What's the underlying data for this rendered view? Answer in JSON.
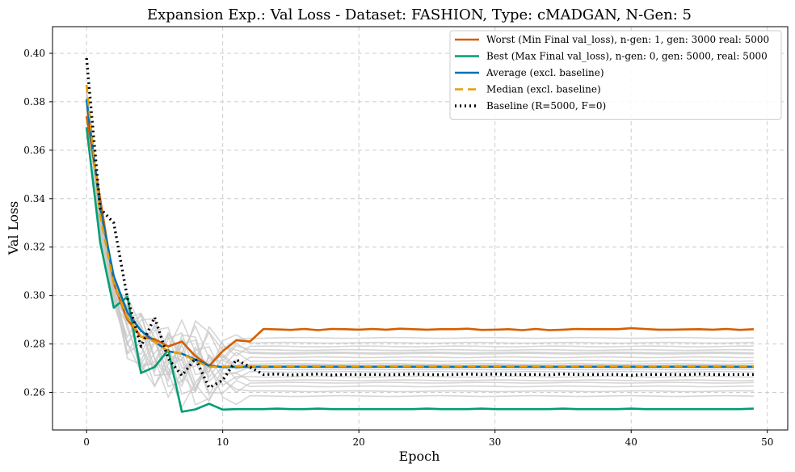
{
  "chart_data": {
    "type": "line",
    "title": "Expansion Exp.: Val Loss - Dataset: FASHION, Type: cMADGAN, N-Gen: 5",
    "xlabel": "Epoch",
    "ylabel": "Val Loss",
    "xlim": [
      -2.5,
      51.5
    ],
    "ylim": [
      0.2445,
      0.411
    ],
    "xticks": [
      0,
      10,
      20,
      30,
      40,
      50
    ],
    "yticks": [
      0.26,
      0.28,
      0.3,
      0.32,
      0.34,
      0.36,
      0.38,
      0.4
    ],
    "ytick_labels": [
      "0.26",
      "0.28",
      "0.30",
      "0.32",
      "0.34",
      "0.36",
      "0.38",
      "0.40"
    ],
    "grid": true,
    "legend_position": "top-right",
    "background_series": {
      "color": "#c8c8c8",
      "finals": [
        0.2825,
        0.2805,
        0.279,
        0.2775,
        0.276,
        0.2745,
        0.273,
        0.2718,
        0.2705,
        0.2695,
        0.2685,
        0.2665,
        0.265,
        0.264,
        0.2625,
        0.2605,
        0.2585,
        0.2765,
        0.2712
      ]
    },
    "series": [
      {
        "name": "Worst (Min Final val_loss), n-gen: 1, gen: 3000 real: 5000",
        "color": "#d55e00",
        "dash": "",
        "width": 2.6,
        "x": [
          0,
          1,
          2,
          3,
          4,
          5,
          6,
          7,
          8,
          9,
          10,
          11,
          12,
          13,
          14,
          15,
          16,
          17,
          18,
          19,
          20,
          21,
          22,
          23,
          24,
          25,
          26,
          27,
          28,
          29,
          30,
          31,
          32,
          33,
          34,
          35,
          36,
          37,
          38,
          39,
          40,
          41,
          42,
          43,
          44,
          45,
          46,
          47,
          48,
          49
        ],
        "y": [
          0.374,
          0.34,
          0.305,
          0.29,
          0.283,
          0.282,
          0.279,
          0.281,
          0.275,
          0.271,
          0.277,
          0.2815,
          0.281,
          0.2862,
          0.286,
          0.2858,
          0.2862,
          0.2857,
          0.2862,
          0.2861,
          0.2859,
          0.2862,
          0.2859,
          0.2863,
          0.2861,
          0.2859,
          0.2861,
          0.2861,
          0.2863,
          0.2858,
          0.2859,
          0.2861,
          0.2857,
          0.2862,
          0.2857,
          0.2859,
          0.2862,
          0.2861,
          0.2861,
          0.2861,
          0.2865,
          0.2862,
          0.2859,
          0.2859,
          0.286,
          0.2861,
          0.2859,
          0.2862,
          0.2858,
          0.2861
        ]
      },
      {
        "name": "Best (Max Final val_loss), n-gen: 0, gen: 5000, real: 5000",
        "color": "#009e73",
        "dash": "",
        "width": 2.6,
        "x": [
          0,
          1,
          2,
          3,
          4,
          5,
          6,
          7,
          8,
          9,
          10,
          11,
          12,
          13,
          14,
          15,
          16,
          17,
          18,
          19,
          20,
          21,
          22,
          23,
          24,
          25,
          26,
          27,
          28,
          29,
          30,
          31,
          32,
          33,
          34,
          35,
          36,
          37,
          38,
          39,
          40,
          41,
          42,
          43,
          44,
          45,
          46,
          47,
          48,
          49
        ],
        "y": [
          0.3695,
          0.322,
          0.295,
          0.2995,
          0.268,
          0.2705,
          0.2775,
          0.252,
          0.253,
          0.2553,
          0.2529,
          0.2531,
          0.2531,
          0.2531,
          0.2533,
          0.2531,
          0.2531,
          0.2533,
          0.2531,
          0.2531,
          0.2531,
          0.2531,
          0.2531,
          0.2531,
          0.2531,
          0.2533,
          0.2531,
          0.2531,
          0.2531,
          0.2533,
          0.2531,
          0.2531,
          0.2531,
          0.2531,
          0.2531,
          0.2533,
          0.2531,
          0.2531,
          0.2531,
          0.2531,
          0.2533,
          0.2531,
          0.2531,
          0.2531,
          0.2531,
          0.2531,
          0.2531,
          0.2531,
          0.2531,
          0.2533
        ]
      },
      {
        "name": "Average (excl. baseline)",
        "color": "#0072b2",
        "dash": "",
        "width": 2.6,
        "x": [
          0,
          1,
          2,
          3,
          4,
          5,
          6,
          7,
          8,
          9,
          10,
          11,
          12,
          13,
          14,
          15,
          16,
          17,
          18,
          19,
          20,
          21,
          22,
          23,
          24,
          25,
          26,
          27,
          28,
          29,
          30,
          31,
          32,
          33,
          34,
          35,
          36,
          37,
          38,
          39,
          40,
          41,
          42,
          43,
          44,
          45,
          46,
          47,
          48,
          49
        ],
        "y": [
          0.381,
          0.336,
          0.308,
          0.293,
          0.2855,
          0.281,
          0.277,
          0.276,
          0.2735,
          0.271,
          0.2705,
          0.2705,
          0.2706,
          0.2706,
          0.2706,
          0.2706,
          0.2706,
          0.2706,
          0.2706,
          0.2706,
          0.2706,
          0.2706,
          0.2706,
          0.2706,
          0.2706,
          0.2706,
          0.2706,
          0.2706,
          0.2706,
          0.2706,
          0.2706,
          0.2706,
          0.2706,
          0.2706,
          0.2706,
          0.2706,
          0.2706,
          0.2706,
          0.2706,
          0.2706,
          0.2706,
          0.2706,
          0.2706,
          0.2706,
          0.2706,
          0.2706,
          0.2706,
          0.2706,
          0.2706,
          0.2706
        ]
      },
      {
        "name": "Median (excl. baseline)",
        "color": "#e69f00",
        "dash": "10 6",
        "width": 2.6,
        "x": [
          0,
          1,
          2,
          3,
          4,
          5,
          6,
          7,
          8,
          9,
          10,
          11,
          12,
          13,
          14,
          15,
          16,
          17,
          18,
          19,
          20,
          21,
          22,
          23,
          24,
          25,
          26,
          27,
          28,
          29,
          30,
          31,
          32,
          33,
          34,
          35,
          36,
          37,
          38,
          39,
          40,
          41,
          42,
          43,
          44,
          45,
          46,
          47,
          48,
          49
        ],
        "y": [
          0.387,
          0.333,
          0.305,
          0.291,
          0.283,
          0.281,
          0.277,
          0.276,
          0.273,
          0.2705,
          0.2707,
          0.2708,
          0.2708,
          0.2708,
          0.2708,
          0.2708,
          0.2708,
          0.2708,
          0.2708,
          0.2708,
          0.2708,
          0.2708,
          0.2708,
          0.2708,
          0.2708,
          0.2708,
          0.2708,
          0.2708,
          0.2708,
          0.2708,
          0.2708,
          0.2708,
          0.2708,
          0.2708,
          0.2708,
          0.2708,
          0.2708,
          0.2708,
          0.2708,
          0.2708,
          0.2708,
          0.2708,
          0.2708,
          0.2708,
          0.2708,
          0.2708,
          0.2708,
          0.2708,
          0.2708,
          0.2708
        ]
      },
      {
        "name": "Baseline (R=5000, F=0)",
        "color": "#000000",
        "dash": "2 4",
        "width": 3.4,
        "x": [
          0,
          1,
          2,
          3,
          4,
          5,
          6,
          7,
          8,
          9,
          10,
          11,
          12,
          13,
          14,
          15,
          16,
          17,
          18,
          19,
          20,
          21,
          22,
          23,
          24,
          25,
          26,
          27,
          28,
          29,
          30,
          31,
          32,
          33,
          34,
          35,
          36,
          37,
          38,
          39,
          40,
          41,
          42,
          43,
          44,
          45,
          46,
          47,
          48,
          49
        ],
        "y": [
          0.398,
          0.336,
          0.33,
          0.299,
          0.279,
          0.291,
          0.274,
          0.267,
          0.274,
          0.262,
          0.265,
          0.2735,
          0.2705,
          0.2674,
          0.2676,
          0.2672,
          0.2674,
          0.2676,
          0.2672,
          0.2674,
          0.2674,
          0.2674,
          0.2673,
          0.2674,
          0.2676,
          0.2674,
          0.2673,
          0.2674,
          0.2676,
          0.2674,
          0.2676,
          0.2674,
          0.2674,
          0.2674,
          0.2673,
          0.2676,
          0.2674,
          0.2674,
          0.2674,
          0.2674,
          0.2671,
          0.2674,
          0.2674,
          0.2674,
          0.2673,
          0.2676,
          0.2674,
          0.2674,
          0.2674,
          0.2674
        ]
      }
    ]
  }
}
